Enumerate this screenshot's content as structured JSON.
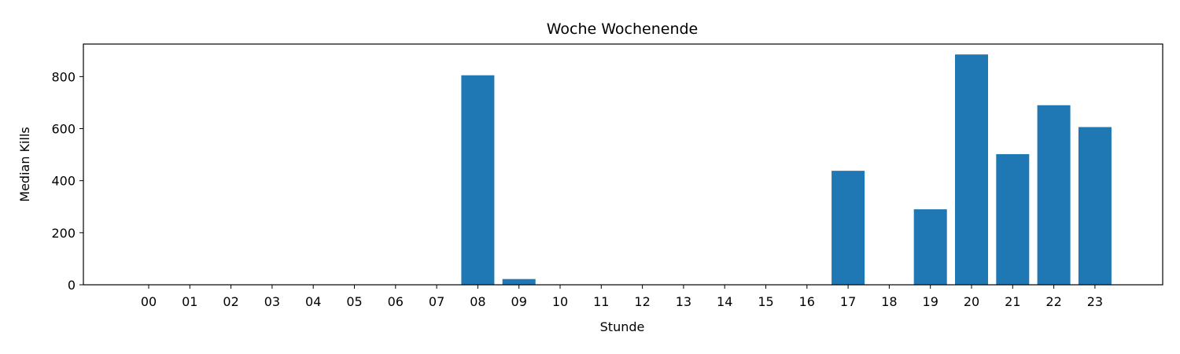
{
  "chart_data": {
    "type": "bar",
    "title": "Woche Wochenende",
    "xlabel": "Stunde",
    "ylabel": "Median Kills",
    "categories": [
      "00",
      "01",
      "02",
      "03",
      "04",
      "05",
      "06",
      "07",
      "08",
      "09",
      "10",
      "11",
      "12",
      "13",
      "14",
      "15",
      "16",
      "17",
      "18",
      "19",
      "20",
      "21",
      "22",
      "23"
    ],
    "values": [
      0,
      0,
      0,
      0,
      0,
      0,
      0,
      0,
      805,
      22,
      0,
      0,
      0,
      0,
      0,
      0,
      0,
      438,
      0,
      290,
      885,
      502,
      690,
      606
    ],
    "ylim": [
      0,
      925
    ],
    "yticks": [
      0,
      200,
      400,
      600,
      800
    ],
    "bar_color": "#1f77b4",
    "grid": false,
    "legend": "none"
  }
}
